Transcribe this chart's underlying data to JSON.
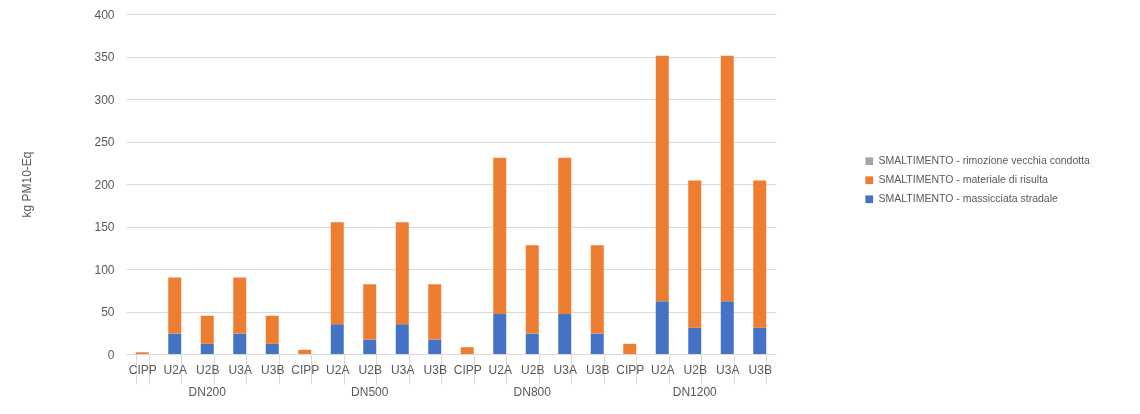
{
  "chart_data": {
    "type": "bar",
    "stacked": true,
    "ylabel": "kg PM10-Eq",
    "categories": [
      "CIPP",
      "U2A",
      "U2B",
      "U3A",
      "U3B",
      "CIPP",
      "U2A",
      "U2B",
      "U3A",
      "U3B",
      "CIPP",
      "U2A",
      "U2B",
      "U3A",
      "U3B",
      "CIPP",
      "U2A",
      "U2B",
      "U3A",
      "U3B"
    ],
    "annotations": [
      "DN200",
      "DN500",
      "DN800",
      "DN1200"
    ],
    "series": [
      {
        "name": "SMALTIMENTO - massicciata stradale",
        "color": "#4472c4",
        "values": [
          0,
          24,
          12,
          24,
          12,
          0,
          35,
          17,
          35,
          17,
          0,
          47,
          24,
          47,
          24,
          0,
          62,
          31,
          62,
          31
        ]
      },
      {
        "name": "SMALTIMENTO - materiale di risulta",
        "color": "#ed7d31",
        "values": [
          2,
          66,
          33,
          66,
          33,
          5,
          120,
          65,
          120,
          65,
          8,
          184,
          104,
          184,
          104,
          12,
          289,
          173,
          289,
          173
        ]
      },
      {
        "name": "SMALTIMENTO - rimozione vecchia condotta",
        "color": "#a5a5a5",
        "values": [
          0,
          0,
          0,
          0,
          0,
          0,
          0,
          0,
          0,
          0,
          0,
          0,
          0,
          0,
          0,
          0,
          0,
          0,
          0,
          0
        ]
      }
    ],
    "ylim": [
      0,
      400
    ],
    "yticks": [
      0,
      50,
      100,
      150,
      200,
      250,
      300,
      350,
      400
    ],
    "grid": "y",
    "legend": "right"
  }
}
